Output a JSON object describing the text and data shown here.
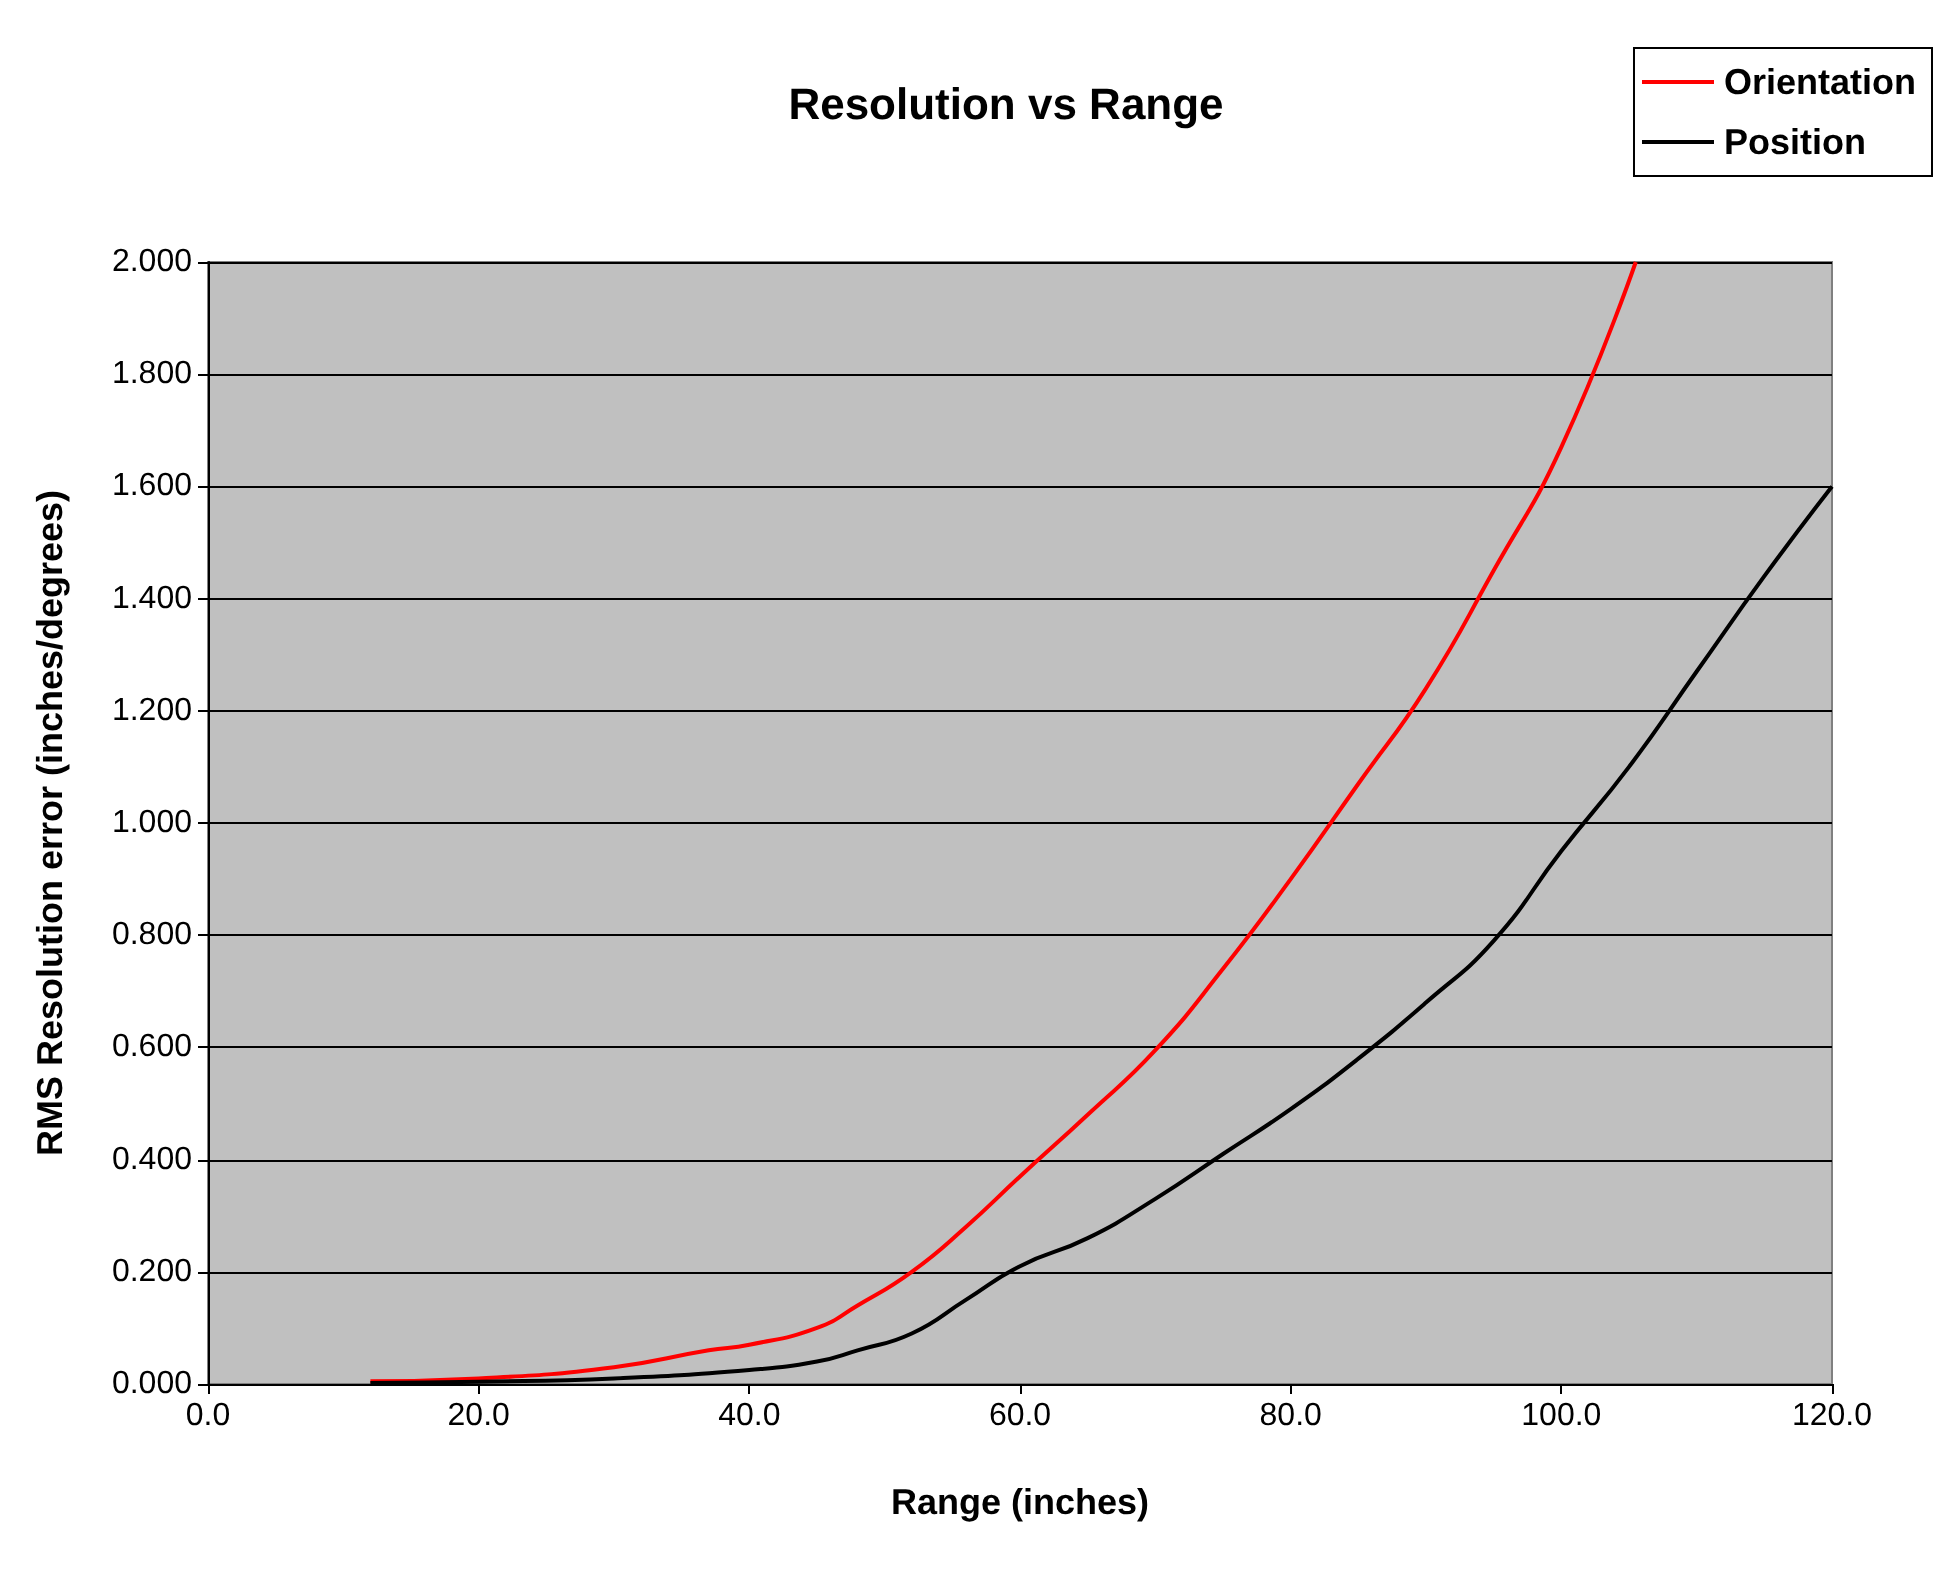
{
  "chart_data": {
    "type": "line",
    "title": "Resolution vs Range",
    "xlabel": "Range (inches)",
    "ylabel": "RMS Resolution error (inches/degrees)",
    "xlim": [
      0,
      120
    ],
    "xticks": [
      {
        "value": 0,
        "label": "0.0"
      },
      {
        "value": 20,
        "label": "20.0"
      },
      {
        "value": 40,
        "label": "40.0"
      },
      {
        "value": 60,
        "label": "60.0"
      },
      {
        "value": 80,
        "label": "80.0"
      },
      {
        "value": 100,
        "label": "100.0"
      },
      {
        "value": 120,
        "label": "120.0"
      }
    ],
    "ylim": [
      0,
      2
    ],
    "yticks": [
      {
        "value": 0,
        "label": "0.000"
      },
      {
        "value": 0.2,
        "label": "0.200"
      },
      {
        "value": 0.4,
        "label": "0.400"
      },
      {
        "value": 0.6,
        "label": "0.600"
      },
      {
        "value": 0.8,
        "label": "0.800"
      },
      {
        "value": 1,
        "label": "1.000"
      },
      {
        "value": 1.2,
        "label": "1.200"
      },
      {
        "value": 1.4,
        "label": "1.400"
      },
      {
        "value": 1.6,
        "label": "1.600"
      },
      {
        "value": 1.8,
        "label": "1.800"
      },
      {
        "value": 2,
        "label": "2.000"
      }
    ],
    "grid": "y",
    "legend": "top right",
    "marker": "none",
    "line_style": "solid",
    "series": [
      {
        "name": "Orientation",
        "color": "#ff0000",
        "x": [
          12,
          20,
          30,
          37,
          40,
          45,
          48,
          52,
          56,
          60,
          65,
          70,
          75,
          80,
          85,
          90,
          95,
          100,
          105.5
        ],
        "values": [
          0.005,
          0.01,
          0.03,
          0.06,
          0.07,
          0.1,
          0.14,
          0.2,
          0.28,
          0.37,
          0.48,
          0.595,
          0.74,
          0.9,
          1.07,
          1.24,
          1.45,
          1.67,
          2.0
        ]
      },
      {
        "name": "Position",
        "color": "#000000",
        "x": [
          12,
          20,
          30,
          40,
          45,
          48,
          52,
          56,
          60,
          65,
          70,
          75,
          80,
          85,
          90,
          95,
          100,
          105,
          110,
          115,
          120
        ],
        "values": [
          0.002,
          0.004,
          0.01,
          0.025,
          0.04,
          0.06,
          0.09,
          0.15,
          0.21,
          0.26,
          0.33,
          0.41,
          0.49,
          0.58,
          0.68,
          0.79,
          0.95,
          1.1,
          1.27,
          1.44,
          1.6
        ]
      }
    ]
  }
}
